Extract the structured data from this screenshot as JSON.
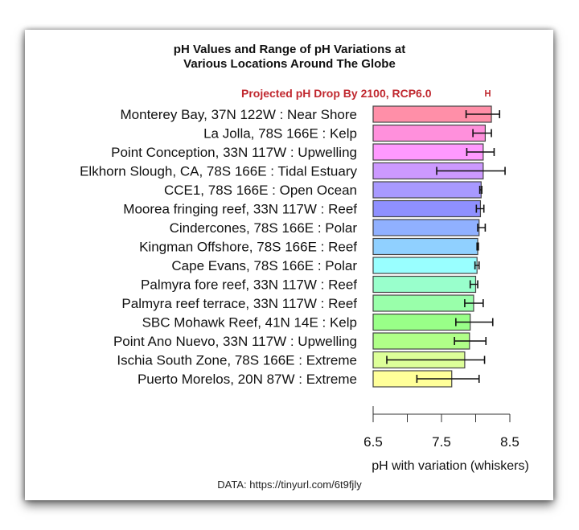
{
  "chart_data": {
    "type": "bar",
    "orientation": "horizontal",
    "title": [
      "pH Values and Range of pH Variations at",
      "Various Locations Around The Globe"
    ],
    "legend": {
      "label": "Projected pH Drop By 2100, RCP6.0",
      "color": "#C0282F",
      "placement": "top-right"
    },
    "xlabel": "pH with variation (whiskers)",
    "xlim": [
      6.5,
      8.5
    ],
    "xticks": [
      6.5,
      7.0,
      7.5,
      8.0,
      8.5
    ],
    "xtick_labels": [
      "6.5",
      "",
      "7.5",
      "",
      "8.5"
    ],
    "categories": [
      "Monterey Bay, 37N 122W : Near Shore",
      "La Jolla, 78S 166E : Kelp",
      "Point Conception, 33N 117W : Upwelling",
      "Elkhorn Slough, CA, 78S 166E : Tidal Estuary",
      "CCE1, 78S 166E : Open Ocean",
      "Moorea fringing reef, 33N 117W : Reef",
      "Cindercones, 78S 166E : Polar",
      "Kingman Offshore, 78S 166E : Reef",
      "Cape Evans, 78S 166E : Polar",
      "Palmyra fore reef, 33N 117W : Reef",
      "Palmyra reef terrace, 33N 117W : Reef",
      "SBC Mohawk Reef, 41N 14E : Kelp",
      "Point Ano Nuevo, 33N 117W : Upwelling",
      "Ischia South Zone, 78S 166E : Extreme",
      "Puerto Morelos, 20N 87W : Extreme"
    ],
    "values": [
      8.23,
      8.14,
      8.11,
      8.11,
      8.08,
      8.07,
      8.05,
      8.03,
      8.02,
      8.0,
      7.97,
      7.92,
      7.91,
      7.84,
      7.65
    ],
    "whisker_low": [
      7.86,
      7.96,
      7.87,
      7.43,
      8.06,
      8.01,
      8.03,
      8.02,
      7.99,
      7.92,
      7.84,
      7.71,
      7.69,
      6.7,
      7.14
    ],
    "whisker_high": [
      8.35,
      8.23,
      8.27,
      8.43,
      8.09,
      8.12,
      8.14,
      8.04,
      8.05,
      8.03,
      8.11,
      8.25,
      8.15,
      8.13,
      8.05
    ],
    "colors": [
      "#FF8FA8",
      "#FF90DC",
      "#FF99FF",
      "#CC99FF",
      "#A899FF",
      "#8F90FF",
      "#90B0FF",
      "#90D0FF",
      "#99FFFF",
      "#99FFCC",
      "#99FFAA",
      "#99FF88",
      "#B0FF88",
      "#DDFF99",
      "#FFFF99"
    ],
    "grid": false
  },
  "footer": "DATA: https://tinyurl.com/6t9fjly"
}
